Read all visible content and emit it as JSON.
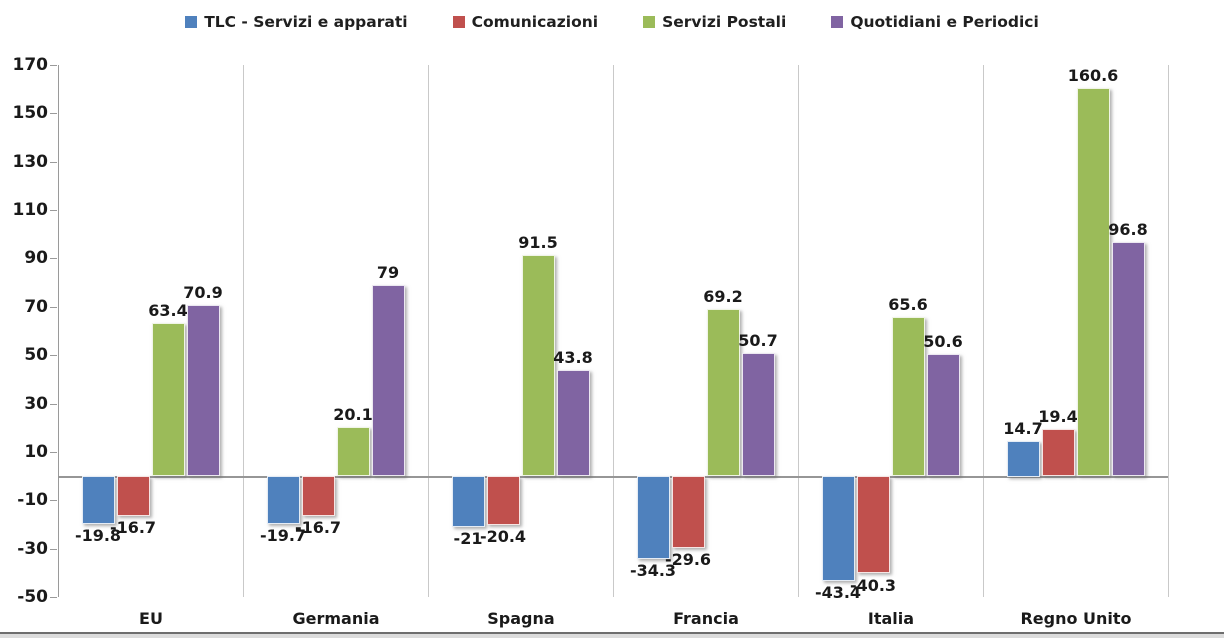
{
  "chart_data": {
    "type": "bar",
    "title": "",
    "xlabel": "",
    "ylabel": "",
    "categories": [
      "EU",
      "Germania",
      "Spagna",
      "Francia",
      "Italia",
      "Regno Unito"
    ],
    "series": [
      {
        "name": "TLC - Servizi e apparati",
        "color": "#4F81BD",
        "values": [
          -19.8,
          -19.7,
          -21,
          -34.3,
          -43.4,
          14.7
        ]
      },
      {
        "name": "Comunicazioni",
        "color": "#C0504D",
        "values": [
          -16.7,
          -16.7,
          -20.4,
          -29.6,
          -40.3,
          19.4
        ]
      },
      {
        "name": "Servizi Postali",
        "color": "#9BBB59",
        "values": [
          63.4,
          20.1,
          91.5,
          69.2,
          65.6,
          160.6
        ]
      },
      {
        "name": "Quotidiani e Periodici",
        "color": "#8064A2",
        "values": [
          70.9,
          79,
          43.8,
          50.7,
          50.6,
          96.8
        ]
      }
    ],
    "data_labels": [
      [
        "-19.8",
        "-19.7",
        "-21",
        "-34.3",
        "-43.4",
        "14.7"
      ],
      [
        "-16.7",
        "-16.7",
        "-20.4",
        "-29.6",
        "-40.3",
        "19.4"
      ],
      [
        "63.4",
        "20.1",
        "91.5",
        "69.2",
        "65.6",
        "160.6"
      ],
      [
        "70.9",
        "79",
        "43.8",
        "50.7",
        "50.6",
        "96.8"
      ]
    ],
    "y_axis": {
      "min": -50,
      "max": 170,
      "step": 20,
      "tick_labels": [
        "170",
        "150",
        "130",
        "110",
        "90",
        "70",
        "50",
        "30",
        "10",
        "-10",
        "-30",
        "-50"
      ]
    },
    "ylim": [
      -50,
      170
    ],
    "legend_position": "top",
    "grid": "vertical-category-dividers-only"
  }
}
